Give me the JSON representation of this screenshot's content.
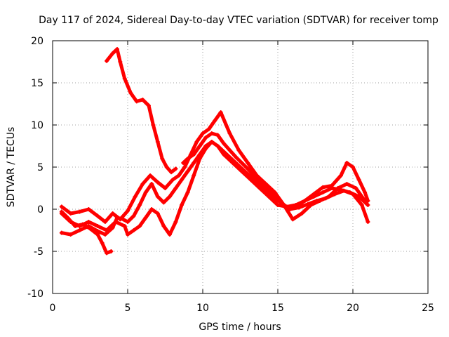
{
  "chart_data": {
    "type": "scatter",
    "title": "Day 117 of 2024, Sidereal Day-to-day VTEC variation (SDTVAR) for receiver tomp",
    "xlabel": "GPS time / hours",
    "ylabel": "SDTVAR / TECUs",
    "xlim": [
      0,
      25
    ],
    "ylim": [
      -10,
      20
    ],
    "xticks": [
      0,
      5,
      10,
      15,
      20,
      25
    ],
    "yticks": [
      -10,
      -5,
      0,
      5,
      10,
      15,
      20
    ],
    "grid": true,
    "legend": "none",
    "marker": "plus",
    "color": "#ff0000",
    "series": [
      {
        "x": [
          3.6,
          4.0,
          4.3,
          4.5,
          4.8,
          5.2,
          5.6,
          6.0,
          6.4,
          6.7,
          7.0,
          7.3,
          7.6,
          7.9,
          8.2
        ],
        "y": [
          17.6,
          18.5,
          19.0,
          17.5,
          15.5,
          13.8,
          12.8,
          13.0,
          12.3,
          10.0,
          8.0,
          6.0,
          5.0,
          4.4,
          4.8
        ]
      },
      {
        "x": [
          0.6,
          1.0,
          1.5,
          2.0,
          2.5,
          3.0,
          3.3,
          3.6,
          3.9
        ],
        "y": [
          -0.3,
          -1.0,
          -2.0,
          -1.8,
          -2.3,
          -3.0,
          -4.0,
          -5.2,
          -5.0
        ]
      },
      {
        "x": [
          0.6,
          1.2,
          1.8,
          2.4,
          3.0,
          3.5,
          4.0,
          4.3,
          4.7,
          5.0,
          5.4,
          5.8,
          6.2,
          6.6,
          7.0,
          7.4,
          7.8,
          8.2,
          8.6,
          9.0,
          9.4,
          9.8,
          10.2,
          10.6,
          11.0,
          11.4,
          12.0,
          12.6,
          13.2,
          13.8,
          14.4,
          15.0,
          15.6,
          16.2,
          16.8,
          17.4,
          18.0,
          18.6,
          19.2,
          19.8,
          20.4,
          21.0
        ],
        "y": [
          -2.8,
          -3.0,
          -2.5,
          -2.0,
          -2.6,
          -3.0,
          -2.2,
          -1.0,
          -1.2,
          -1.5,
          -0.8,
          0.5,
          2.0,
          3.0,
          1.5,
          0.8,
          1.5,
          2.5,
          3.5,
          4.5,
          5.5,
          6.5,
          7.5,
          8.0,
          7.5,
          6.5,
          5.5,
          4.5,
          3.5,
          2.5,
          1.5,
          0.5,
          0.3,
          0.5,
          1.0,
          1.5,
          2.0,
          2.5,
          2.3,
          2.0,
          1.5,
          0.5
        ]
      },
      {
        "x": [
          0.6,
          1.2,
          1.8,
          2.4,
          3.0,
          3.5,
          4.0,
          4.5,
          5.0,
          5.5,
          6.0,
          6.5,
          7.0,
          7.5,
          8.0,
          8.4,
          8.8,
          9.2,
          9.6,
          10.0,
          10.4,
          10.8,
          11.2,
          11.8,
          12.4,
          13.0,
          13.6,
          14.2,
          14.8,
          15.4,
          16.0,
          16.6,
          17.2,
          17.8,
          18.4,
          19.0,
          19.6,
          20.2,
          20.8
        ],
        "y": [
          0.3,
          -0.5,
          -0.3,
          0.0,
          -0.8,
          -1.5,
          -0.5,
          -1.2,
          -0.2,
          1.5,
          3.0,
          4.0,
          3.2,
          2.5,
          3.5,
          4.0,
          5.0,
          6.5,
          8.0,
          9.0,
          9.5,
          10.5,
          11.5,
          9.0,
          7.0,
          5.5,
          4.0,
          3.0,
          2.0,
          0.5,
          -1.2,
          -0.5,
          0.5,
          1.0,
          1.5,
          2.5,
          3.0,
          2.5,
          1.0
        ]
      },
      {
        "x": [
          0.6,
          1.2,
          1.8,
          2.4,
          3.0,
          3.6,
          4.2,
          4.8,
          5.0,
          5.4,
          5.8,
          6.2,
          6.6,
          7.0,
          7.4,
          7.8,
          8.2,
          8.6,
          9.0,
          9.4,
          9.8,
          10.2,
          10.6,
          11.0,
          11.6,
          12.2,
          12.8,
          13.4,
          14.0,
          14.6,
          15.2,
          15.8,
          16.4,
          17.0,
          17.6,
          18.2,
          18.8,
          19.4,
          20.0,
          20.6,
          21.0
        ],
        "y": [
          -0.5,
          -1.5,
          -2.0,
          -1.5,
          -2.0,
          -2.5,
          -1.5,
          -2.0,
          -3.0,
          -2.5,
          -2.0,
          -1.0,
          0.0,
          -0.5,
          -2.0,
          -3.0,
          -1.5,
          0.5,
          2.0,
          4.0,
          6.0,
          7.2,
          8.0,
          7.5,
          6.5,
          5.5,
          4.5,
          3.5,
          2.5,
          1.5,
          0.8,
          0.0,
          0.2,
          0.6,
          1.0,
          1.3,
          1.8,
          2.2,
          1.8,
          0.5,
          -1.5
        ]
      },
      {
        "x": [
          8.7,
          9.0,
          9.4,
          9.8,
          10.2,
          10.6,
          11.0,
          11.4,
          11.8,
          12.2,
          12.6,
          13.0,
          13.4,
          13.8,
          14.2,
          14.6,
          15.0,
          15.4,
          15.8,
          16.2,
          16.8,
          17.4,
          18.0,
          18.6,
          19.2,
          19.6,
          20.0,
          20.4,
          20.8,
          21.0
        ],
        "y": [
          5.5,
          6.0,
          6.5,
          7.5,
          8.5,
          9.0,
          8.8,
          7.8,
          7.0,
          6.2,
          5.5,
          4.8,
          4.0,
          3.2,
          2.5,
          1.8,
          1.2,
          0.5,
          0.0,
          0.3,
          1.0,
          1.8,
          2.6,
          2.8,
          4.0,
          5.5,
          5.0,
          3.5,
          2.0,
          1.0
        ]
      }
    ]
  }
}
